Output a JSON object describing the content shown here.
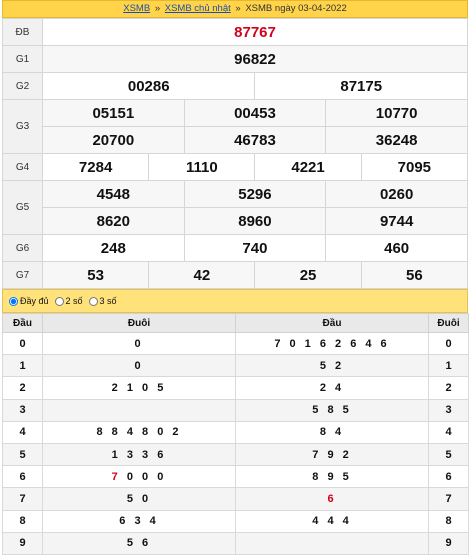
{
  "breadcrumb": {
    "link1": "XSMB",
    "sep1": "»",
    "link2": "XSMB chủ nhật",
    "sep2": "»",
    "current": "XSMB ngày 03-04-2022"
  },
  "prizes": {
    "db": {
      "label": "ĐB",
      "numbers": [
        "87767"
      ]
    },
    "g1": {
      "label": "G1",
      "numbers": [
        "96822"
      ]
    },
    "g2": {
      "label": "G2",
      "numbers": [
        "00286",
        "87175"
      ]
    },
    "g3": {
      "label": "G3",
      "numbers": [
        "05151",
        "00453",
        "10770",
        "20700",
        "46783",
        "36248"
      ]
    },
    "g4": {
      "label": "G4",
      "numbers": [
        "7284",
        "1110",
        "4221",
        "7095"
      ]
    },
    "g5": {
      "label": "G5",
      "numbers": [
        "4548",
        "5296",
        "0260",
        "8620",
        "8960",
        "9744"
      ]
    },
    "g6": {
      "label": "G6",
      "numbers": [
        "248",
        "740",
        "460"
      ]
    },
    "g7": {
      "label": "G7",
      "numbers": [
        "53",
        "42",
        "25",
        "56"
      ]
    }
  },
  "options": {
    "full": "Đầy đủ",
    "two": "2 số",
    "three": "3 số",
    "selected": "full"
  },
  "loto": {
    "headers": [
      "Đầu",
      "Đuôi",
      "Đầu",
      "Đuôi"
    ],
    "rows": [
      {
        "head": "0",
        "tails": "0",
        "heads": "7 0 1 6 2 6 4 6",
        "tail": "0"
      },
      {
        "head": "1",
        "tails": "0",
        "heads": "5 2",
        "tail": "1"
      },
      {
        "head": "2",
        "tails": "2 1 0 5",
        "heads": "2 4",
        "tail": "2"
      },
      {
        "head": "3",
        "tails": "",
        "heads": "5 8 5",
        "tail": "3"
      },
      {
        "head": "4",
        "tails": "8 8 4 8 0 2",
        "heads": "8 4",
        "tail": "4"
      },
      {
        "head": "5",
        "tails": "1 3 3 6",
        "heads": "7 9 2",
        "tail": "5"
      },
      {
        "head": "6",
        "tails_red": "7",
        "tails": " 0 0 0",
        "heads": "8 9 5",
        "tail": "6"
      },
      {
        "head": "7",
        "tails": "5 0",
        "heads_red": "6",
        "tail": "7"
      },
      {
        "head": "8",
        "tails": "6 3 4",
        "heads": "4 4 4",
        "tail": "8"
      },
      {
        "head": "9",
        "tails": "5 6",
        "heads": "",
        "tail": "9"
      }
    ]
  },
  "colors": {
    "accent": "#ffd44a",
    "special": "#d0021b",
    "link": "#1d4ea8"
  }
}
